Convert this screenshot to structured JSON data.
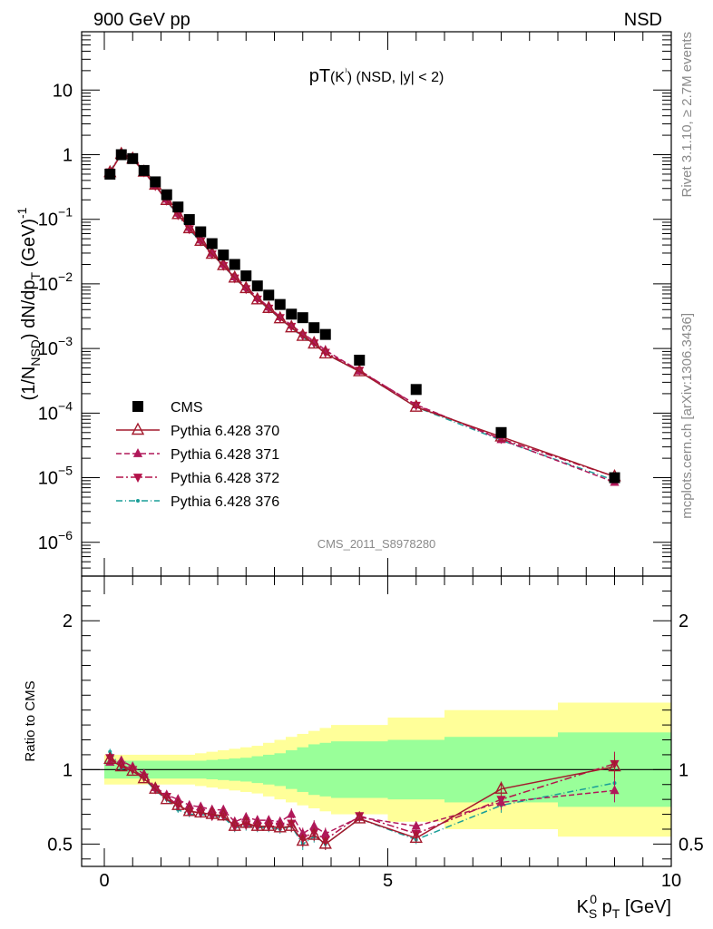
{
  "header": {
    "left": "900 GeV pp",
    "right": "NSD"
  },
  "side": {
    "rivet": "Rivet 3.1.10, ≥ 2.7M events",
    "mcplots": "mcplots.cern.ch [arXiv:1306.3436]"
  },
  "chart_data": [
    {
      "type": "scatter",
      "title": "pT(K⁾) (NSD, |y| < 2)",
      "title_main": "pT",
      "title_paren": "(K",
      "title_sup": "⁾",
      "title_rest": ") (NSD, |y| < 2)",
      "ylabel": "(1/N_NSD) dN/dp_T (GeV)^-1",
      "ylabel_parts": {
        "a": "(1/N",
        "a_sub": "NSD",
        "b": ") dN/dp",
        "b_sub": "T",
        "c": " (GeV)",
        "c_sup": "-1"
      },
      "watermark": "CMS_2011_S8978280",
      "yscale": "log",
      "xlim": [
        -0.4,
        10
      ],
      "ylim": [
        3e-07,
        80
      ],
      "y_ticks": [
        {
          "value": 1e-06,
          "base": "10",
          "exp": "−6"
        },
        {
          "value": 1e-05,
          "base": "10",
          "exp": "−5"
        },
        {
          "value": 0.0001,
          "base": "10",
          "exp": "−4"
        },
        {
          "value": 0.001,
          "base": "10",
          "exp": "−3"
        },
        {
          "value": 0.01,
          "base": "10",
          "exp": "−2"
        },
        {
          "value": 0.1,
          "base": "10",
          "exp": "−1"
        },
        {
          "value": 1,
          "base": "1",
          "exp": ""
        },
        {
          "value": 10,
          "base": "10",
          "exp": ""
        }
      ],
      "legend_position": "lower-left",
      "x": [
        0.1,
        0.3,
        0.5,
        0.7,
        0.9,
        1.1,
        1.3,
        1.5,
        1.7,
        1.9,
        2.1,
        2.3,
        2.5,
        2.7,
        2.9,
        3.1,
        3.3,
        3.5,
        3.7,
        3.9,
        4.5,
        5.5,
        7.0,
        9.0
      ],
      "series": [
        {
          "name": "CMS",
          "color": "#000000",
          "marker": "square",
          "values": [
            0.5,
            1.0,
            0.87,
            0.57,
            0.38,
            0.24,
            0.155,
            0.099,
            0.064,
            0.042,
            0.028,
            0.02,
            0.0133,
            0.0093,
            0.0067,
            0.0048,
            0.0034,
            0.003,
            0.0021,
            0.00165,
            0.00066,
            0.000232,
            5e-05,
            1e-05
          ]
        },
        {
          "name": "Pythia 6.428 370",
          "color": "#a31a2d",
          "marker": "triangle-open",
          "dash": "",
          "values": [
            0.53,
            1.02,
            0.86,
            0.54,
            0.34,
            0.197,
            0.119,
            0.072,
            0.046,
            0.029,
            0.0193,
            0.0124,
            0.0085,
            0.0057,
            0.0042,
            0.0029,
            0.0021,
            0.00155,
            0.00118,
            0.00083,
            0.00044,
            0.000124,
            4.3e-05,
            1.04e-05
          ]
        },
        {
          "name": "Pythia 6.428 371",
          "color": "#b0185a",
          "marker": "triangle-up",
          "dash": "6,3",
          "values": [
            0.52,
            1.06,
            0.89,
            0.55,
            0.33,
            0.205,
            0.125,
            0.075,
            0.048,
            0.03,
            0.0203,
            0.0129,
            0.009,
            0.0061,
            0.0044,
            0.0031,
            0.0023,
            0.0017,
            0.0013,
            0.00094,
            0.00045,
            0.000135,
            3.9e-05,
            8.5e-06
          ]
        },
        {
          "name": "Pythia 6.428 372",
          "color": "#b3124a",
          "marker": "triangle-down",
          "dash": "8,3,2,3",
          "values": [
            0.54,
            1.03,
            0.87,
            0.54,
            0.33,
            0.196,
            0.117,
            0.071,
            0.046,
            0.029,
            0.0192,
            0.0123,
            0.0084,
            0.0058,
            0.0042,
            0.003,
            0.0022,
            0.0016,
            0.00122,
            0.00087,
            0.00046,
            0.000132,
            4e-05,
            1.04e-05
          ]
        },
        {
          "name": "Pythia 6.428 376",
          "color": "#1a9e98",
          "marker": "dot",
          "dash": "7,3,1,3",
          "values": [
            0.56,
            1.01,
            0.86,
            0.54,
            0.33,
            0.193,
            0.113,
            0.069,
            0.045,
            0.029,
            0.019,
            0.0123,
            0.0082,
            0.0057,
            0.0041,
            0.0029,
            0.0021,
            0.0015,
            0.00116,
            0.00083,
            0.00044,
            0.000124,
            3.8e-05,
            9.1e-06
          ]
        }
      ]
    },
    {
      "type": "scatter",
      "ylabel": "Ratio to CMS",
      "xlabel": "K_S^0 p_T [GeV]",
      "xlabel_parts": {
        "a": "K",
        "a_sub": "S",
        "a_sup": "0",
        "b": " p",
        "b_sub": "T",
        "c": " [GeV]"
      },
      "xlim": [
        -0.4,
        10
      ],
      "ylim": [
        0.35,
        2.3
      ],
      "x_ticks": [
        {
          "value": 0,
          "label": "0"
        },
        {
          "value": 5,
          "label": "5"
        },
        {
          "value": 10,
          "label": "10"
        }
      ],
      "y_ticks": [
        {
          "value": 0.5,
          "label": "0.5"
        },
        {
          "value": 1,
          "label": "1"
        },
        {
          "value": 2,
          "label": "2"
        }
      ],
      "bands": {
        "green": "#99ff99",
        "yellow": "#ffff99",
        "edges": [
          0.0,
          0.2,
          0.4,
          0.6,
          0.8,
          1.0,
          1.2,
          1.4,
          1.6,
          1.8,
          2.0,
          2.2,
          2.4,
          2.6,
          2.8,
          3.0,
          3.2,
          3.4,
          3.6,
          3.8,
          4.0,
          5.0,
          6.0,
          8.0,
          10.0
        ],
        "green_half": [
          0.06,
          0.06,
          0.06,
          0.06,
          0.06,
          0.06,
          0.06,
          0.06,
          0.06,
          0.065,
          0.07,
          0.075,
          0.08,
          0.09,
          0.1,
          0.11,
          0.13,
          0.15,
          0.17,
          0.18,
          0.19,
          0.2,
          0.22,
          0.25,
          0.45
        ],
        "yellow_half": [
          0.1,
          0.1,
          0.1,
          0.1,
          0.1,
          0.1,
          0.1,
          0.1,
          0.11,
          0.12,
          0.13,
          0.14,
          0.15,
          0.16,
          0.18,
          0.2,
          0.22,
          0.24,
          0.26,
          0.28,
          0.3,
          0.35,
          0.4,
          0.45,
          0.9
        ]
      },
      "series": [
        {
          "name": "Pythia 6.428 370",
          "values": [
            1.07,
            1.02,
            0.99,
            0.94,
            0.87,
            0.8,
            0.76,
            0.72,
            0.71,
            0.7,
            0.69,
            0.62,
            0.64,
            0.62,
            0.62,
            0.61,
            0.62,
            0.52,
            0.56,
            0.5,
            0.67,
            0.54,
            0.87,
            1.02
          ],
          "err": [
            0.02,
            0.02,
            0.02,
            0.02,
            0.02,
            0.02,
            0.02,
            0.02,
            0.02,
            0.02,
            0.02,
            0.03,
            0.03,
            0.03,
            0.03,
            0.03,
            0.04,
            0.04,
            0.04,
            0.04,
            0.03,
            0.03,
            0.05,
            0.08
          ]
        },
        {
          "name": "Pythia 6.428 371",
          "values": [
            1.05,
            1.06,
            1.02,
            0.97,
            0.88,
            0.83,
            0.8,
            0.76,
            0.75,
            0.73,
            0.73,
            0.65,
            0.68,
            0.66,
            0.66,
            0.65,
            0.7,
            0.57,
            0.62,
            0.57,
            0.68,
            0.62,
            0.78,
            0.86
          ],
          "err": [
            0.02,
            0.02,
            0.02,
            0.02,
            0.02,
            0.02,
            0.02,
            0.02,
            0.02,
            0.02,
            0.02,
            0.03,
            0.03,
            0.03,
            0.03,
            0.03,
            0.04,
            0.04,
            0.04,
            0.04,
            0.03,
            0.03,
            0.05,
            0.08
          ]
        },
        {
          "name": "Pythia 6.428 372",
          "values": [
            1.08,
            1.03,
            1.0,
            0.95,
            0.87,
            0.82,
            0.76,
            0.72,
            0.71,
            0.69,
            0.69,
            0.62,
            0.63,
            0.62,
            0.62,
            0.62,
            0.64,
            0.54,
            0.58,
            0.53,
            0.69,
            0.57,
            0.8,
            1.04
          ],
          "err": [
            0.02,
            0.02,
            0.02,
            0.02,
            0.02,
            0.02,
            0.02,
            0.02,
            0.02,
            0.02,
            0.02,
            0.03,
            0.03,
            0.03,
            0.03,
            0.03,
            0.04,
            0.04,
            0.04,
            0.04,
            0.03,
            0.03,
            0.05,
            0.08
          ]
        },
        {
          "name": "Pythia 6.428 376",
          "values": [
            1.12,
            1.01,
            0.99,
            0.94,
            0.86,
            0.8,
            0.73,
            0.7,
            0.7,
            0.69,
            0.68,
            0.61,
            0.62,
            0.61,
            0.61,
            0.6,
            0.62,
            0.5,
            0.55,
            0.5,
            0.67,
            0.53,
            0.76,
            0.91
          ],
          "err": [
            0.02,
            0.02,
            0.02,
            0.02,
            0.02,
            0.02,
            0.02,
            0.02,
            0.02,
            0.02,
            0.02,
            0.03,
            0.03,
            0.03,
            0.03,
            0.03,
            0.04,
            0.04,
            0.04,
            0.04,
            0.03,
            0.03,
            0.05,
            0.08
          ]
        }
      ]
    }
  ]
}
